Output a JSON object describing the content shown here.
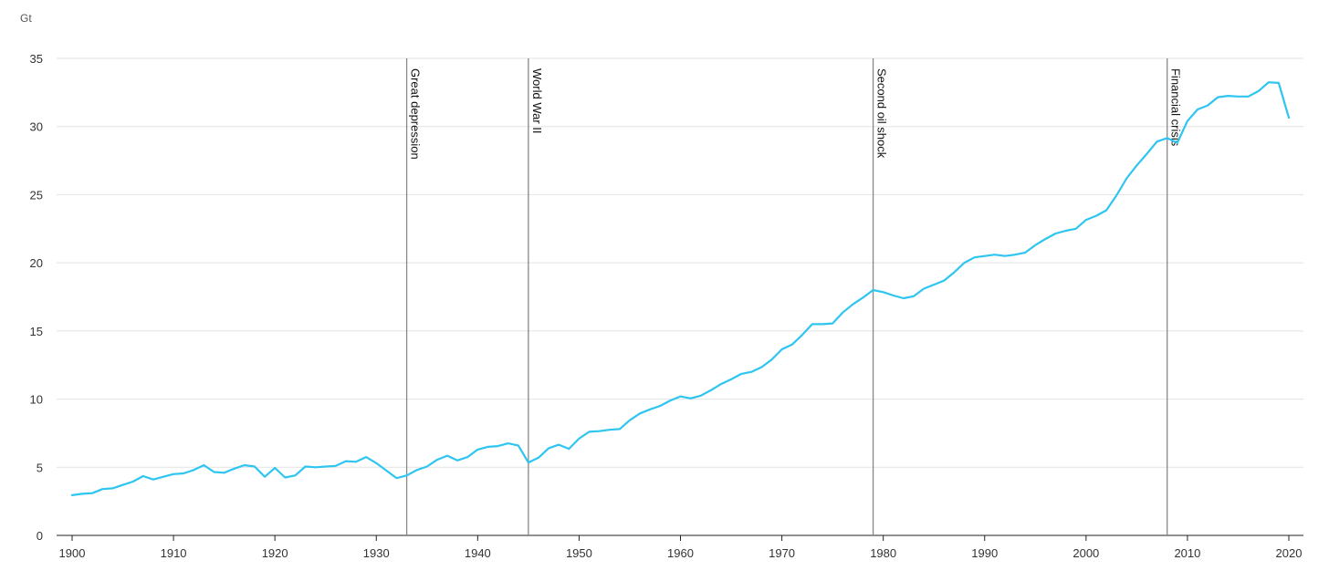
{
  "chart_data": {
    "type": "line",
    "unit_label": "Gt",
    "xlim": [
      1900,
      2020
    ],
    "ylim": [
      0,
      35
    ],
    "x_ticks": [
      1900,
      1910,
      1920,
      1930,
      1940,
      1950,
      1960,
      1970,
      1980,
      1990,
      2000,
      2010,
      2020
    ],
    "y_ticks": [
      0,
      5,
      10,
      15,
      20,
      25,
      30,
      35
    ],
    "grid": "horizontal",
    "series": [
      {
        "color": "#2ec5f0",
        "x": [
          1900,
          1901,
          1902,
          1903,
          1904,
          1905,
          1906,
          1907,
          1908,
          1909,
          1910,
          1911,
          1912,
          1913,
          1914,
          1915,
          1916,
          1917,
          1918,
          1919,
          1920,
          1921,
          1922,
          1923,
          1924,
          1925,
          1926,
          1927,
          1928,
          1929,
          1930,
          1931,
          1932,
          1933,
          1934,
          1935,
          1936,
          1937,
          1938,
          1939,
          1940,
          1941,
          1942,
          1943,
          1944,
          1945,
          1946,
          1947,
          1948,
          1949,
          1950,
          1951,
          1952,
          1953,
          1954,
          1955,
          1956,
          1957,
          1958,
          1959,
          1960,
          1961,
          1962,
          1963,
          1964,
          1965,
          1966,
          1967,
          1968,
          1969,
          1970,
          1971,
          1972,
          1973,
          1974,
          1975,
          1976,
          1977,
          1978,
          1979,
          1980,
          1981,
          1982,
          1983,
          1984,
          1985,
          1986,
          1987,
          1988,
          1989,
          1990,
          1991,
          1992,
          1993,
          1994,
          1995,
          1996,
          1997,
          1998,
          1999,
          2000,
          2001,
          2002,
          2003,
          2004,
          2005,
          2006,
          2007,
          2008,
          2009,
          2010,
          2011,
          2012,
          2013,
          2014,
          2015,
          2016,
          2017,
          2018,
          2019,
          2020
        ],
        "values": [
          2.95,
          3.05,
          3.1,
          3.4,
          3.45,
          3.7,
          3.95,
          4.35,
          4.1,
          4.3,
          4.5,
          4.55,
          4.8,
          5.15,
          4.65,
          4.6,
          4.9,
          5.15,
          5.05,
          4.3,
          4.95,
          4.25,
          4.4,
          5.05,
          5.0,
          5.05,
          5.1,
          5.45,
          5.4,
          5.75,
          5.3,
          4.75,
          4.2,
          4.4,
          4.8,
          5.05,
          5.55,
          5.85,
          5.5,
          5.75,
          6.3,
          6.5,
          6.55,
          6.75,
          6.6,
          5.35,
          5.7,
          6.4,
          6.65,
          6.35,
          7.1,
          7.6,
          7.65,
          7.75,
          7.8,
          8.45,
          8.95,
          9.25,
          9.5,
          9.9,
          10.2,
          10.05,
          10.25,
          10.65,
          11.1,
          11.45,
          11.85,
          12.0,
          12.35,
          12.9,
          13.65,
          14.0,
          14.7,
          15.5,
          15.5,
          15.55,
          16.35,
          16.95,
          17.45,
          18.0,
          17.85,
          17.6,
          17.4,
          17.55,
          18.1,
          18.4,
          18.7,
          19.3,
          20.0,
          20.4,
          20.5,
          20.6,
          20.5,
          20.6,
          20.75,
          21.3,
          21.75,
          22.15,
          22.35,
          22.5,
          23.15,
          23.45,
          23.85,
          24.95,
          26.2,
          27.15,
          28.0,
          28.9,
          29.15,
          28.8,
          30.4,
          31.25,
          31.55,
          32.15,
          32.25,
          32.2,
          32.2,
          32.6,
          33.25,
          33.2,
          30.65
        ]
      }
    ],
    "events": [
      {
        "label": "Great depression",
        "year": 1933
      },
      {
        "label": "World War II",
        "year": 1945
      },
      {
        "label": "Second oil shock",
        "year": 1979
      },
      {
        "label": "Financial crisis",
        "year": 2008
      }
    ]
  }
}
